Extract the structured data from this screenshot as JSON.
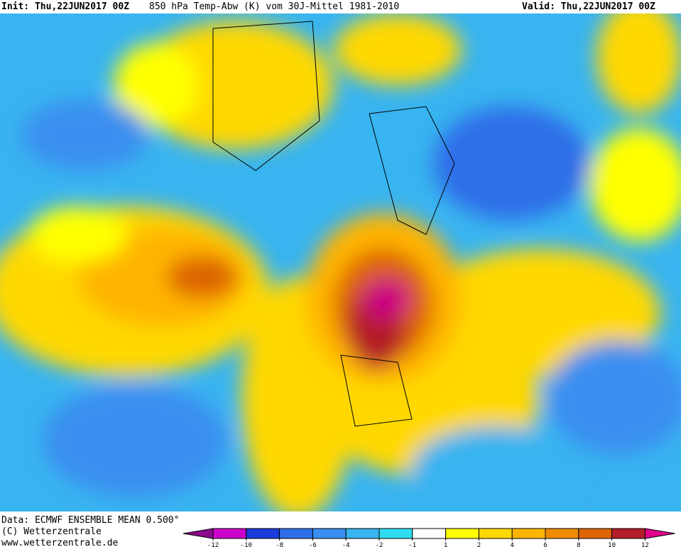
{
  "header": {
    "init": "Init: Thu,22JUN2017 00Z",
    "title": "850 hPa Temp-Abw (K) vom 30J-Mittel 1981-2010",
    "valid": "Valid: Thu,22JUN2017 00Z"
  },
  "footer": {
    "data": "Data: ECMWF ENSEMBLE MEAN 0.500°",
    "copyright": "(C) Wetterzentrale",
    "url": "www.wetterzentrale.de"
  },
  "legend": {
    "ticks": [
      -12,
      -10,
      -8,
      -6,
      -4,
      -2,
      -1,
      1,
      2,
      4,
      6,
      8,
      10,
      12
    ],
    "colors": [
      "#8b0a8b",
      "#cc00cc",
      "#1a3cdc",
      "#2f6ee8",
      "#3a8ff0",
      "#38b4f0",
      "#30dcf0",
      "#ffffff",
      "#ffff00",
      "#ffd800",
      "#ffb400",
      "#f08c00",
      "#dc6400",
      "#b41e28",
      "#e0008c"
    ]
  }
}
